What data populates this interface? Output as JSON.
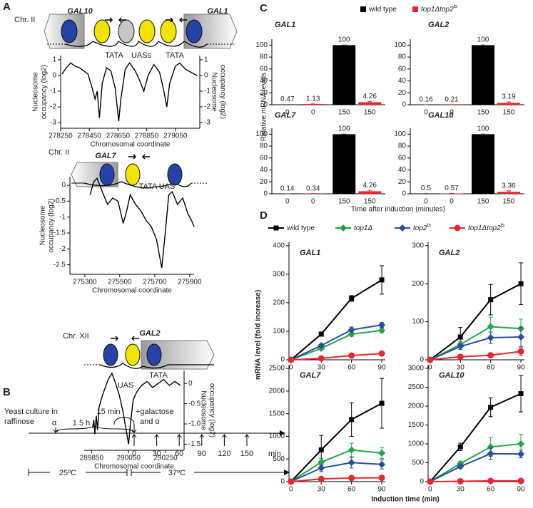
{
  "panel_labels": [
    "A",
    "B",
    "C",
    "D"
  ],
  "diagrams": [
    {
      "chr": "Chr. II",
      "genes": [
        "GAL10",
        "GAL1"
      ],
      "labels": [
        "TATA",
        "UASs",
        "TATA"
      ]
    },
    {
      "chr": "Chr. II",
      "genes": [
        "GAL7"
      ],
      "labels": [
        "TATA UAS"
      ]
    },
    {
      "chr": "Chr. XII",
      "genes": [
        "GAL2"
      ],
      "labels": [
        "TATA",
        "UAS"
      ]
    }
  ],
  "timeline": {
    "start_label": [
      "Yeast culture in",
      "raffinose"
    ],
    "alpha": "α",
    "wait": "1.5 h",
    "pulse": "15 min",
    "addition": [
      "+galactose",
      "and α"
    ],
    "timepoints": [
      "0",
      "30",
      "60",
      "90",
      "120",
      "150"
    ],
    "unit": "min",
    "temps": [
      "25ºC",
      "37ºC"
    ]
  },
  "panel_c": {
    "ylabel": "Relative mRNA levels",
    "xlabel": "Time after induction (minutes)",
    "legend": [
      {
        "name": "wild type",
        "color": "#000000"
      },
      {
        "name": "top1Δtop2",
        "sup": "ts",
        "color": "#e8262d"
      }
    ]
  },
  "panel_d": {
    "ylabel": "mRNA level (fold increase)",
    "xlabel": "Induction time (min)",
    "legend": [
      {
        "name": "wild type",
        "color": "#000000",
        "marker": "square"
      },
      {
        "name": "top1Δ",
        "color": "#22a64b",
        "marker": "diamond"
      },
      {
        "name": "top2",
        "sup": "ts",
        "color": "#2a4d9c",
        "marker": "diamond"
      },
      {
        "name": "top1Δtop2",
        "sup": "ts",
        "color": "#e8262d",
        "marker": "circle"
      }
    ]
  },
  "chart_data": [
    {
      "type": "line",
      "xlabel": "Chromosomal coordinate",
      "ylabel_lines": [
        "Nucleosome",
        "occupancy (log2)"
      ],
      "y2label_lines": [
        "Nucleosome",
        "occupancy (log2)"
      ],
      "color": "#000000",
      "xlim": [
        278250,
        279220
      ],
      "xticks": [
        278250,
        278450,
        278650,
        278850,
        279050
      ],
      "ylim": [
        -3.36,
        1.27
      ],
      "yticks": [
        1,
        0,
        -1,
        -2,
        -3
      ],
      "y2lim": [
        -3.36,
        1.27
      ],
      "y2ticks": [
        1,
        0,
        -1,
        -2,
        -3
      ],
      "x": [
        278260,
        278290,
        278320,
        278350,
        278380,
        278410,
        278440,
        278470,
        278490,
        278505,
        278520,
        278540,
        278570,
        278600,
        278630,
        278655,
        278670,
        278700,
        278730,
        278770,
        278800,
        278830,
        278860,
        278900,
        278940,
        278970,
        278990,
        279010,
        279050,
        279080,
        279120,
        279160,
        279200
      ],
      "values": [
        0.1,
        0.5,
        0.8,
        0.6,
        0.5,
        0.3,
        0.1,
        -0.8,
        -1.5,
        -1.0,
        -2.7,
        -0.5,
        0.5,
        0.3,
        -0.8,
        -2.9,
        -1.5,
        0.4,
        0.8,
        0.3,
        -0.3,
        -1.0,
        0.0,
        0.7,
        0.2,
        -1.0,
        -2.0,
        -0.5,
        0.6,
        0.8,
        0.4,
        0.2,
        0.0
      ]
    },
    {
      "type": "line",
      "xlabel": "Chromosomal coordinate",
      "ylabel_lines": [
        "Nucleosome",
        "occupancy (log2)"
      ],
      "color": "#000000",
      "xlim": [
        275215,
        275925
      ],
      "xticks": [
        275300,
        275500,
        275700,
        275900
      ],
      "ylim": [
        -2.8,
        0.27
      ],
      "yticks": [
        0,
        -0.5,
        -1,
        -1.5,
        -2,
        -2.5
      ],
      "x": [
        275330,
        275350,
        275370,
        275400,
        275430,
        275460,
        275490,
        275520,
        275540,
        275560,
        275590,
        275620,
        275650,
        275680,
        275710,
        275740,
        275760,
        275780,
        275800,
        275830,
        275860,
        275890,
        275910,
        275925
      ],
      "values": [
        -0.3,
        0.1,
        0.22,
        -0.2,
        -0.6,
        -0.4,
        -0.5,
        -1.2,
        -0.8,
        -0.3,
        -0.6,
        -0.8,
        -1.1,
        -1.3,
        -1.7,
        -2.6,
        -1.5,
        -0.3,
        -0.2,
        -0.6,
        -0.4,
        -0.9,
        -1.1,
        -1.3
      ]
    },
    {
      "type": "line",
      "xlabel": "Chromosomal coordinate",
      "ylabel_lines": [
        "Nucleosome",
        "occupancy (log2)"
      ],
      "color": "#000000",
      "y_axis_side": "right",
      "xlim": [
        289810,
        290350
      ],
      "xticks": [
        289850,
        290050,
        290250
      ],
      "ylim": [
        -1.65,
        0.32
      ],
      "yticks": [
        0,
        -0.5,
        {
          "value": -1,
          "label": "-1.0"
        },
        -1.5
      ],
      "x": [
        289855,
        289862,
        289868,
        289875,
        289882,
        289890,
        289905,
        289920,
        289940,
        289960,
        289980,
        290000,
        290020,
        290035,
        290050,
        290060,
        290075,
        290095,
        290120,
        290150,
        290180,
        290210,
        290240,
        290270,
        290300,
        290330
      ],
      "values": [
        -1.1,
        -0.9,
        -1.25,
        -0.8,
        -1.15,
        -0.6,
        -0.35,
        -0.15,
        0.1,
        0.25,
        0.0,
        -0.3,
        -0.7,
        -1.1,
        -1.5,
        -1.0,
        -0.4,
        -0.2,
        -0.05,
        0.05,
        -0.1,
        0.0,
        0.1,
        -0.05,
        0.05,
        -0.05
      ]
    },
    {
      "type": "bar",
      "title": "GAL1",
      "categories": [
        "0",
        "150"
      ],
      "ylim": [
        0,
        110
      ],
      "yticks": [
        0,
        20,
        40,
        60,
        80,
        100
      ],
      "series": [
        {
          "values": [
            0.47,
            100
          ],
          "errors": [
            0.2,
            0.5
          ]
        },
        {
          "values": [
            1.13,
            4.26
          ],
          "errors": [
            0.3,
            1.2
          ]
        }
      ]
    },
    {
      "type": "bar",
      "title": "GAL2",
      "categories": [
        "0",
        "150"
      ],
      "ylim": [
        0,
        110
      ],
      "yticks": [
        0,
        20,
        40,
        60,
        80,
        100
      ],
      "series": [
        {
          "values": [
            0.16,
            100
          ],
          "errors": [
            0.1,
            0.5
          ]
        },
        {
          "values": [
            0.21,
            3.19
          ],
          "errors": [
            0.1,
            1.5
          ]
        }
      ]
    },
    {
      "type": "bar",
      "title": "GAL7",
      "categories": [
        "0",
        "150"
      ],
      "ylim": [
        0,
        110
      ],
      "yticks": [
        0,
        20,
        40,
        60,
        80,
        100
      ],
      "series": [
        {
          "values": [
            0.14,
            100
          ],
          "errors": [
            0.1,
            0.5
          ]
        },
        {
          "values": [
            0.34,
            4.26
          ],
          "errors": [
            0.1,
            1.5
          ]
        }
      ]
    },
    {
      "type": "bar",
      "title": "GAL10",
      "categories": [
        "0",
        "150"
      ],
      "ylim": [
        0,
        110
      ],
      "yticks": [
        0,
        20,
        40,
        60,
        80,
        100
      ],
      "series": [
        {
          "values": [
            0.5,
            100
          ],
          "errors": [
            0.2,
            0.5
          ]
        },
        {
          "values": [
            0.57,
            3.36
          ],
          "errors": [
            0.2,
            1.5
          ]
        }
      ]
    },
    {
      "type": "line",
      "title": "GAL1",
      "x": [
        0,
        30,
        60,
        90
      ],
      "xlim": [
        -2,
        93.5
      ],
      "xticks": [
        0,
        30,
        60,
        90
      ],
      "ylim": [
        0,
        412
      ],
      "yticks": [
        0,
        100,
        200,
        300,
        400
      ],
      "series": [
        {
          "values": [
            0,
            90,
            215,
            280
          ],
          "errors": [
            0,
            5,
            10,
            50
          ]
        },
        {
          "values": [
            0,
            40,
            90,
            103
          ],
          "errors": [
            0,
            5,
            8,
            8
          ]
        },
        {
          "values": [
            0,
            50,
            105,
            122
          ],
          "errors": [
            0,
            5,
            10,
            8
          ]
        },
        {
          "values": [
            0,
            5,
            15,
            22
          ],
          "errors": [
            0,
            2,
            3,
            4
          ]
        }
      ]
    },
    {
      "type": "line",
      "title": "GAL2",
      "x": [
        0,
        30,
        60,
        90
      ],
      "xlim": [
        -2,
        93.5
      ],
      "xticks": [
        0,
        30,
        60,
        90
      ],
      "ylim": [
        0,
        309
      ],
      "yticks": [
        0,
        100,
        200,
        300
      ],
      "series": [
        {
          "values": [
            0,
            60,
            158,
            200
          ],
          "errors": [
            0,
            25,
            40,
            55
          ]
        },
        {
          "values": [
            0,
            40,
            87,
            82
          ],
          "errors": [
            0,
            8,
            25,
            25
          ]
        },
        {
          "values": [
            0,
            35,
            58,
            60
          ],
          "errors": [
            0,
            8,
            15,
            25
          ]
        },
        {
          "values": [
            0,
            8,
            12,
            22
          ],
          "errors": [
            0,
            3,
            5,
            10
          ]
        }
      ]
    },
    {
      "type": "line",
      "title": "GAL7",
      "x": [
        0,
        30,
        60,
        90
      ],
      "xlim": [
        -2,
        93.5
      ],
      "xticks": [
        0,
        30,
        60,
        90
      ],
      "ylim": [
        0,
        2580
      ],
      "yticks": [
        0,
        500,
        1000,
        1500,
        2000,
        2500
      ],
      "series": [
        {
          "values": [
            0,
            700,
            1370,
            1730
          ],
          "errors": [
            0,
            320,
            370,
            550
          ]
        },
        {
          "values": [
            0,
            430,
            700,
            630
          ],
          "errors": [
            0,
            80,
            150,
            120
          ]
        },
        {
          "values": [
            0,
            300,
            420,
            380
          ],
          "errors": [
            0,
            80,
            120,
            100
          ]
        },
        {
          "values": [
            0,
            60,
            80,
            85
          ],
          "errors": [
            0,
            10,
            15,
            15
          ]
        }
      ]
    },
    {
      "type": "line",
      "title": "GAL10",
      "x": [
        0,
        30,
        60,
        90
      ],
      "xlim": [
        -2,
        93.5
      ],
      "xticks": [
        0,
        30,
        60,
        90
      ],
      "ylim": [
        0,
        3095
      ],
      "yticks": [
        0,
        500,
        1000,
        1500,
        2000,
        2500,
        3000
      ],
      "series": [
        {
          "values": [
            0,
            920,
            1970,
            2330
          ],
          "errors": [
            0,
            100,
            250,
            480
          ]
        },
        {
          "values": [
            0,
            480,
            920,
            1000
          ],
          "errors": [
            0,
            60,
            250,
            250
          ]
        },
        {
          "values": [
            0,
            400,
            740,
            730
          ],
          "errors": [
            0,
            40,
            150,
            100
          ]
        },
        {
          "values": [
            0,
            10,
            20,
            20
          ],
          "errors": [
            0,
            5,
            8,
            8
          ]
        }
      ]
    }
  ]
}
